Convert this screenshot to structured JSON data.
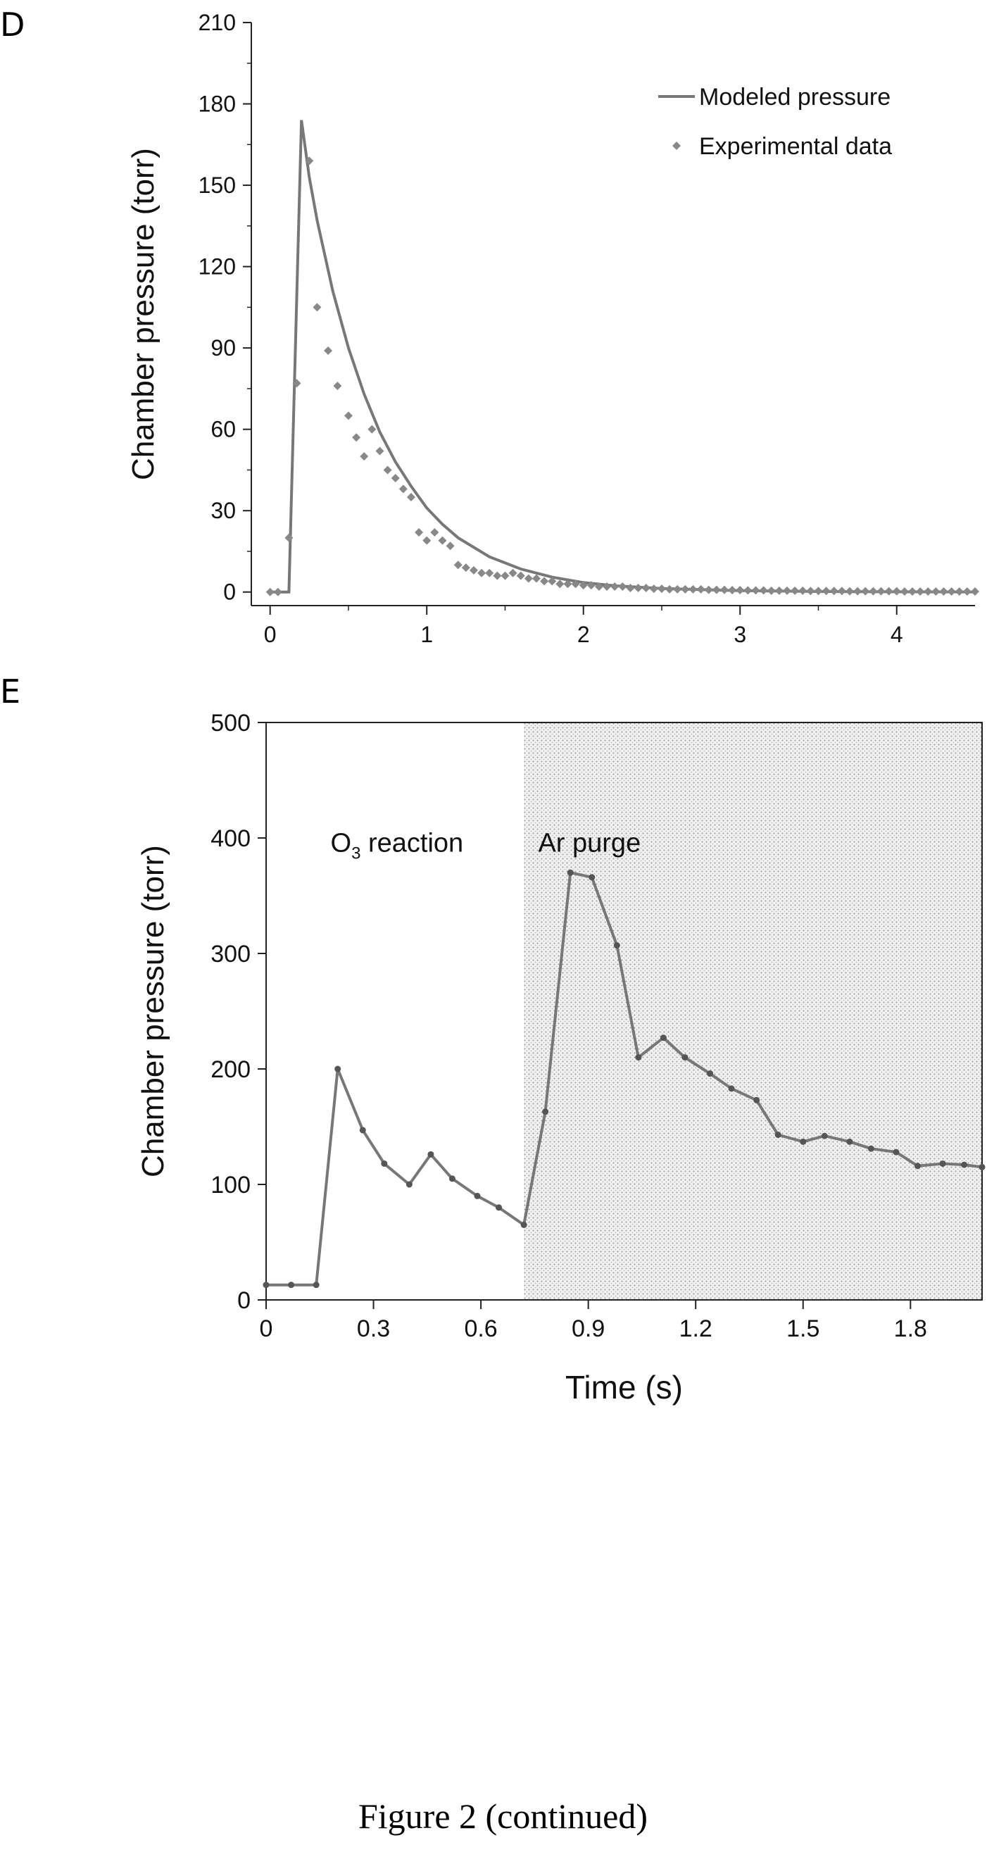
{
  "panels": {
    "d": {
      "letter": "D"
    },
    "e": {
      "letter": "E"
    }
  },
  "figure_caption": "Figure 2 (continued)",
  "chart_data": [
    {
      "id": "D",
      "type": "line",
      "title": "",
      "xlabel": "",
      "ylabel": "Chamber pressure (torr)",
      "xlim": [
        -0.12,
        4.5
      ],
      "ylim": [
        -5,
        210
      ],
      "xticks": [
        0,
        1,
        2,
        3,
        4
      ],
      "yticks": [
        0,
        30,
        60,
        90,
        120,
        150,
        180,
        210
      ],
      "legend_position": "top-right",
      "series": [
        {
          "name": "Modeled pressure",
          "style": "line",
          "color": "#777777",
          "x": [
            0,
            0.1,
            0.12,
            0.2,
            0.25,
            0.3,
            0.4,
            0.5,
            0.6,
            0.7,
            0.8,
            0.9,
            1.0,
            1.1,
            1.2,
            1.4,
            1.6,
            1.8,
            2.0,
            2.2,
            2.5,
            3.0,
            3.5,
            4.0,
            4.5
          ],
          "y": [
            0,
            0,
            0,
            174,
            153,
            137,
            111,
            90,
            73,
            59,
            48,
            39,
            31,
            25,
            20,
            13,
            8.5,
            5.5,
            3.5,
            2.3,
            1.3,
            0.5,
            0.2,
            0.1,
            0.05
          ]
        },
        {
          "name": "Experimental data",
          "style": "markers",
          "color": "#888888",
          "x": [
            0.0,
            0.05,
            0.12,
            0.17,
            0.25,
            0.3,
            0.37,
            0.43,
            0.5,
            0.55,
            0.6,
            0.65,
            0.7,
            0.75,
            0.8,
            0.85,
            0.9,
            0.95,
            1.0,
            1.05,
            1.1,
            1.15,
            1.2,
            1.25,
            1.3,
            1.35,
            1.4,
            1.45,
            1.5,
            1.55,
            1.6,
            1.65,
            1.7,
            1.75,
            1.8,
            1.85,
            1.9,
            1.95,
            2.0,
            2.05,
            2.1,
            2.15,
            2.2,
            2.25,
            2.3,
            2.35,
            2.4,
            2.45,
            2.5,
            2.55,
            2.6,
            2.65,
            2.7,
            2.75,
            2.8,
            2.85,
            2.9,
            2.95,
            3.0,
            3.05,
            3.1,
            3.15,
            3.2,
            3.25,
            3.3,
            3.35,
            3.4,
            3.45,
            3.5,
            3.55,
            3.6,
            3.65,
            3.7,
            3.75,
            3.8,
            3.85,
            3.9,
            3.95,
            4.0,
            4.05,
            4.1,
            4.15,
            4.2,
            4.25,
            4.3,
            4.35,
            4.4,
            4.45,
            4.5
          ],
          "y": [
            0,
            0,
            20,
            77,
            159,
            105,
            89,
            76,
            65,
            57,
            50,
            60,
            52,
            45,
            42,
            38,
            35,
            22,
            19,
            22,
            19,
            17,
            10,
            9,
            8,
            7,
            7,
            6,
            6,
            7,
            6,
            5,
            5,
            4,
            4,
            3,
            3,
            3,
            2.5,
            2.5,
            2,
            2,
            2,
            2,
            1.5,
            1.5,
            1.5,
            1.2,
            1.2,
            1,
            1,
            1,
            1,
            1,
            0.8,
            0.8,
            0.8,
            0.7,
            0.7,
            0.6,
            0.6,
            0.6,
            0.5,
            0.5,
            0.5,
            0.5,
            0.5,
            0.4,
            0.4,
            0.4,
            0.4,
            0.4,
            0.3,
            0.3,
            0.3,
            0.3,
            0.3,
            0.3,
            0.3,
            0.2,
            0.2,
            0.2,
            0.2,
            0.2,
            0.2,
            0.2,
            0.2,
            0.2,
            0.2
          ]
        }
      ]
    },
    {
      "id": "E",
      "type": "line",
      "title": "",
      "xlabel": "Time (s)",
      "ylabel": "Chamber pressure  (torr)",
      "xlim": [
        0,
        2.0
      ],
      "ylim": [
        0,
        500
      ],
      "xticks": [
        0,
        0.3,
        0.6,
        0.9,
        1.2,
        1.5,
        1.8
      ],
      "xtick_labels": [
        "0",
        "0.3",
        "0.6",
        "0.9",
        "1.2",
        "1.5",
        "1.8"
      ],
      "yticks": [
        0,
        100,
        200,
        300,
        400,
        500
      ],
      "grid": false,
      "shaded_region": {
        "x_start": 0.72,
        "x_end": 2.0,
        "color": "#e0e0e0"
      },
      "annotations": [
        {
          "text": "O",
          "sub": "3",
          "after": " reaction",
          "x": 0.18,
          "y": 388
        },
        {
          "text": "Ar purge",
          "sub": "",
          "after": "",
          "x": 0.76,
          "y": 388
        }
      ],
      "series": [
        {
          "name": "",
          "style": "line+markers",
          "color": "#777777",
          "x": [
            0,
            0.07,
            0.14,
            0.2,
            0.27,
            0.33,
            0.4,
            0.46,
            0.52,
            0.59,
            0.65,
            0.72,
            0.78,
            0.85,
            0.91,
            0.98,
            1.04,
            1.11,
            1.17,
            1.24,
            1.3,
            1.37,
            1.43,
            1.5,
            1.56,
            1.63,
            1.69,
            1.76,
            1.82,
            1.89,
            1.95,
            2.0
          ],
          "y": [
            13,
            13,
            13,
            200,
            147,
            118,
            100,
            126,
            105,
            90,
            80,
            65,
            163,
            370,
            366,
            307,
            210,
            227,
            210,
            196,
            183,
            173,
            143,
            137,
            142,
            137,
            131,
            128,
            116,
            118,
            117,
            115
          ]
        }
      ]
    }
  ]
}
